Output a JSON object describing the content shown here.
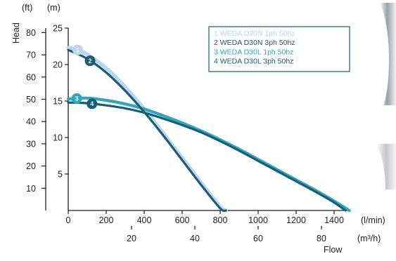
{
  "chart_data": {
    "type": "line",
    "title": "",
    "xlabel": "Flow",
    "ylabel": "Head",
    "x_primary": {
      "unit": "(l/min)",
      "ticks": [
        "0",
        "200",
        "400",
        "600",
        "800",
        "1000",
        "1200",
        "1400"
      ],
      "tick_values": [
        0,
        200,
        400,
        600,
        800,
        1000,
        1200,
        1400
      ],
      "range": [
        0,
        1500
      ]
    },
    "x_secondary": {
      "unit": "(m³/h)",
      "ticks": [
        "20",
        "40",
        "60",
        "80"
      ],
      "tick_values": [
        20,
        40,
        60,
        80
      ]
    },
    "y_primary": {
      "unit": "(m)",
      "ticks": [
        "25",
        "20",
        "15",
        "10",
        "5"
      ],
      "tick_values": [
        25,
        20,
        15,
        10,
        5
      ],
      "range": [
        0,
        25
      ]
    },
    "y_secondary": {
      "unit": "(ft)",
      "ticks": [
        "80",
        "70",
        "60",
        "50",
        "40",
        "30",
        "20",
        "10"
      ],
      "tick_values": [
        80,
        70,
        60,
        50,
        40,
        30,
        20,
        10
      ]
    },
    "grid": false,
    "legend_position": "top-right",
    "series": [
      {
        "name": "1 WEDA D30N 1ph 50hz",
        "marker": "1",
        "color": "#b9d8ee",
        "x": [
          0,
          50,
          100,
          200,
          300,
          400,
          500,
          600,
          700,
          800,
          830
        ],
        "y": [
          22.3,
          22.0,
          21.4,
          19.5,
          16.9,
          13.9,
          10.6,
          7.2,
          3.8,
          0.5,
          0
        ]
      },
      {
        "name": "2 WEDA D30N 3ph 50hz",
        "marker": "2",
        "color": "#1a5c78",
        "x": [
          0,
          100,
          200,
          300,
          400,
          500,
          600,
          700,
          800,
          830
        ],
        "y": [
          22.0,
          20.8,
          18.9,
          16.4,
          13.5,
          10.3,
          6.9,
          3.5,
          0.3,
          0
        ]
      },
      {
        "name": "3 WEDA D30L 1ph 50hz",
        "marker": "3",
        "color": "#2aa9bd",
        "x": [
          0,
          100,
          200,
          300,
          400,
          500,
          600,
          700,
          800,
          900,
          1000,
          1100,
          1200,
          1300,
          1400,
          1480
        ],
        "y": [
          15.3,
          15.4,
          15.1,
          14.6,
          13.9,
          13.0,
          12.0,
          10.9,
          9.7,
          8.4,
          7.0,
          5.6,
          4.2,
          2.8,
          1.3,
          0
        ]
      },
      {
        "name": "4 WEDA D30L 3ph 50hz",
        "marker": "4",
        "color": "#1a5c78",
        "x": [
          0,
          100,
          200,
          300,
          400,
          500,
          600,
          700,
          800,
          900,
          1000,
          1100,
          1200,
          1300,
          1400,
          1460
        ],
        "y": [
          14.8,
          14.7,
          14.4,
          14.0,
          13.4,
          12.6,
          11.7,
          10.7,
          9.5,
          8.2,
          6.8,
          5.4,
          4.0,
          2.6,
          1.1,
          0
        ]
      }
    ]
  }
}
